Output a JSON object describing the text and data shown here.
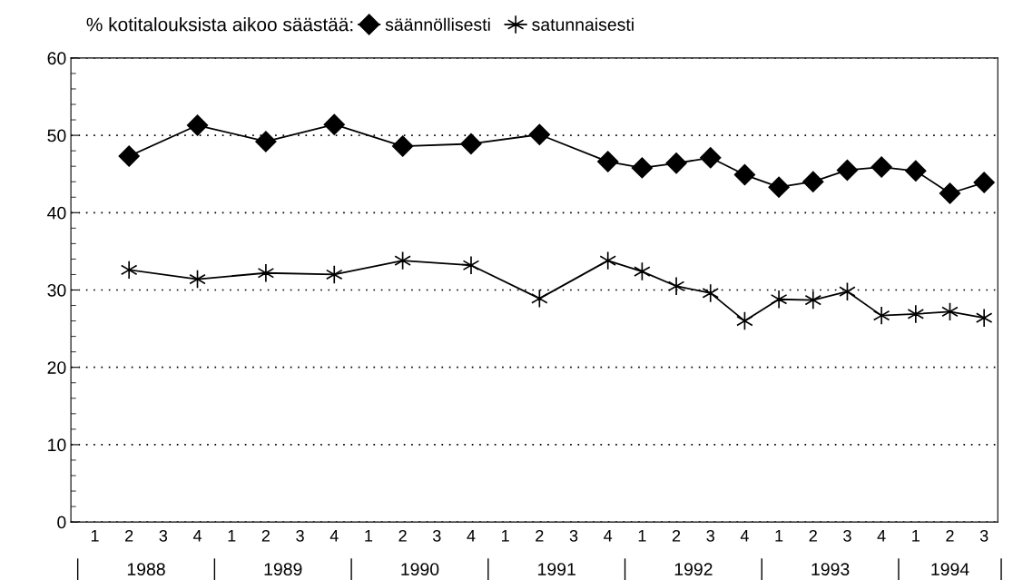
{
  "chart_data": {
    "type": "line",
    "title": "% kotitalouksista aikoo säästää:",
    "categories": [
      "1",
      "2",
      "3",
      "4",
      "1",
      "2",
      "3",
      "4",
      "1",
      "2",
      "3",
      "4",
      "1",
      "2",
      "3",
      "4",
      "1",
      "2",
      "3",
      "4",
      "1",
      "2",
      "3",
      "4",
      "1",
      "2",
      "3"
    ],
    "annotations": [
      "1988",
      "1989",
      "1990",
      "1991",
      "1992",
      "1993",
      "1994"
    ],
    "series": [
      {
        "name": "säännöllisesti",
        "color": "#000000",
        "marker": "diamond",
        "values": [
          null,
          47.3,
          null,
          51.3,
          null,
          49.2,
          null,
          51.4,
          null,
          48.6,
          null,
          48.9,
          null,
          50.1,
          null,
          46.6,
          45.8,
          46.4,
          47.1,
          44.9,
          43.3,
          44.0,
          45.5,
          45.9,
          45.4,
          42.5,
          43.9
        ]
      },
      {
        "name": "satunnaisesti",
        "color": "#000000",
        "marker": "cross",
        "values": [
          null,
          32.6,
          null,
          31.4,
          null,
          32.2,
          null,
          32.0,
          null,
          33.8,
          null,
          33.2,
          null,
          28.9,
          null,
          33.8,
          32.4,
          30.5,
          29.6,
          26.0,
          28.8,
          28.7,
          29.8,
          26.7,
          26.9,
          27.2,
          26.4
        ]
      }
    ],
    "ylim": [
      0,
      60
    ],
    "yticks": [
      0,
      10,
      20,
      30,
      40,
      50,
      60
    ],
    "grid": "y",
    "legend": "top",
    "line_style": "solid"
  }
}
